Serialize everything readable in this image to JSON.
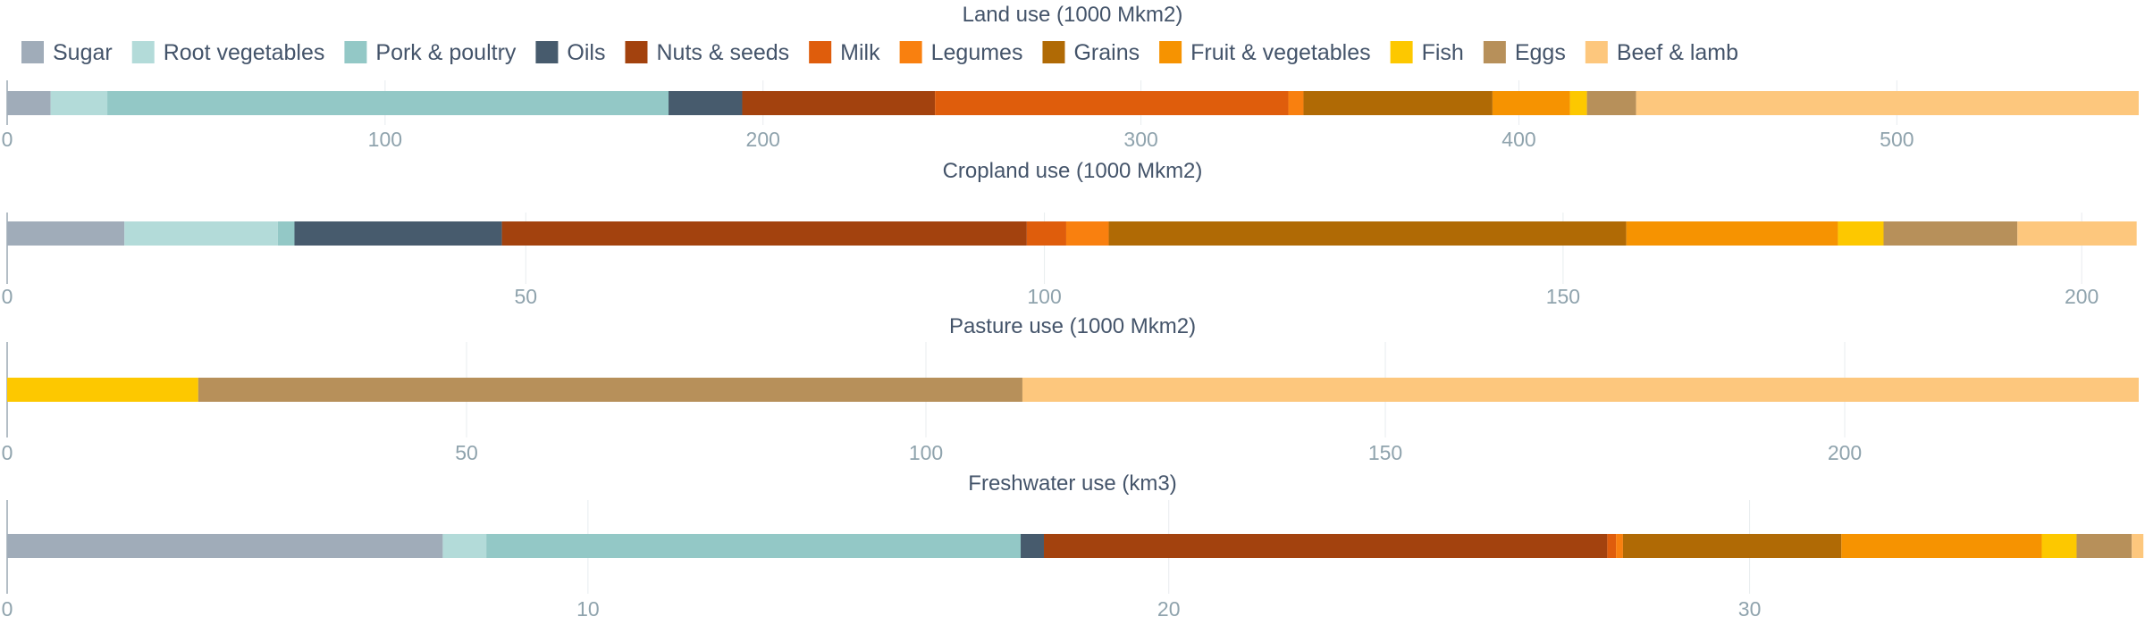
{
  "chart_data": {
    "type": "bar",
    "orientation": "horizontal-stacked",
    "legend_position": "top-left",
    "grid": true,
    "categories": [
      "Sugar",
      "Root vegetables",
      "Pork & poultry",
      "Oils",
      "Nuts & seeds",
      "Milk",
      "Legumes",
      "Grains",
      "Fruit & vegetables",
      "Fish",
      "Eggs",
      "Beef & lamb"
    ],
    "colors": [
      "#a0acb9",
      "#b3dbd9",
      "#93c8c6",
      "#475b6d",
      "#a3420e",
      "#df5d0c",
      "#f9800f",
      "#b06a05",
      "#f69301",
      "#fdc800",
      "#b7905a",
      "#fdc77d"
    ],
    "panels": [
      {
        "title": "Land use (1000 Mkm2)",
        "xlim": [
          0,
          564
        ],
        "ticks": [
          0,
          100,
          200,
          300,
          400,
          500
        ],
        "values": [
          11.5,
          15,
          148.5,
          19.5,
          51,
          93.5,
          4,
          50,
          20.5,
          4.5,
          13,
          133
        ]
      },
      {
        "title": "Cropland use (1000 Mkm2)",
        "xlim": [
          0,
          205.5
        ],
        "ticks": [
          0,
          50,
          100,
          150,
          200
        ],
        "values": [
          11.3,
          14.8,
          1.6,
          20,
          50.6,
          3.8,
          4.1,
          49.9,
          20.4,
          4.4,
          12.9,
          11.5
        ]
      },
      {
        "title": "Pasture use (1000 Mkm2)",
        "xlim": [
          0,
          232
        ],
        "ticks": [
          0,
          50,
          100,
          150,
          200
        ],
        "values": [
          0,
          0,
          0,
          0,
          0,
          0,
          0,
          0,
          0,
          20.8,
          89.7,
          121.5
        ]
      },
      {
        "title": "Freshwater use (km3)",
        "xlim": [
          0,
          36.7
        ],
        "ticks": [
          0,
          10,
          20,
          30
        ],
        "values": [
          7.5,
          0.75,
          9.2,
          0.4,
          9.7,
          0.15,
          0.12,
          3.76,
          3.45,
          0.6,
          0.95,
          0.2
        ]
      }
    ]
  }
}
